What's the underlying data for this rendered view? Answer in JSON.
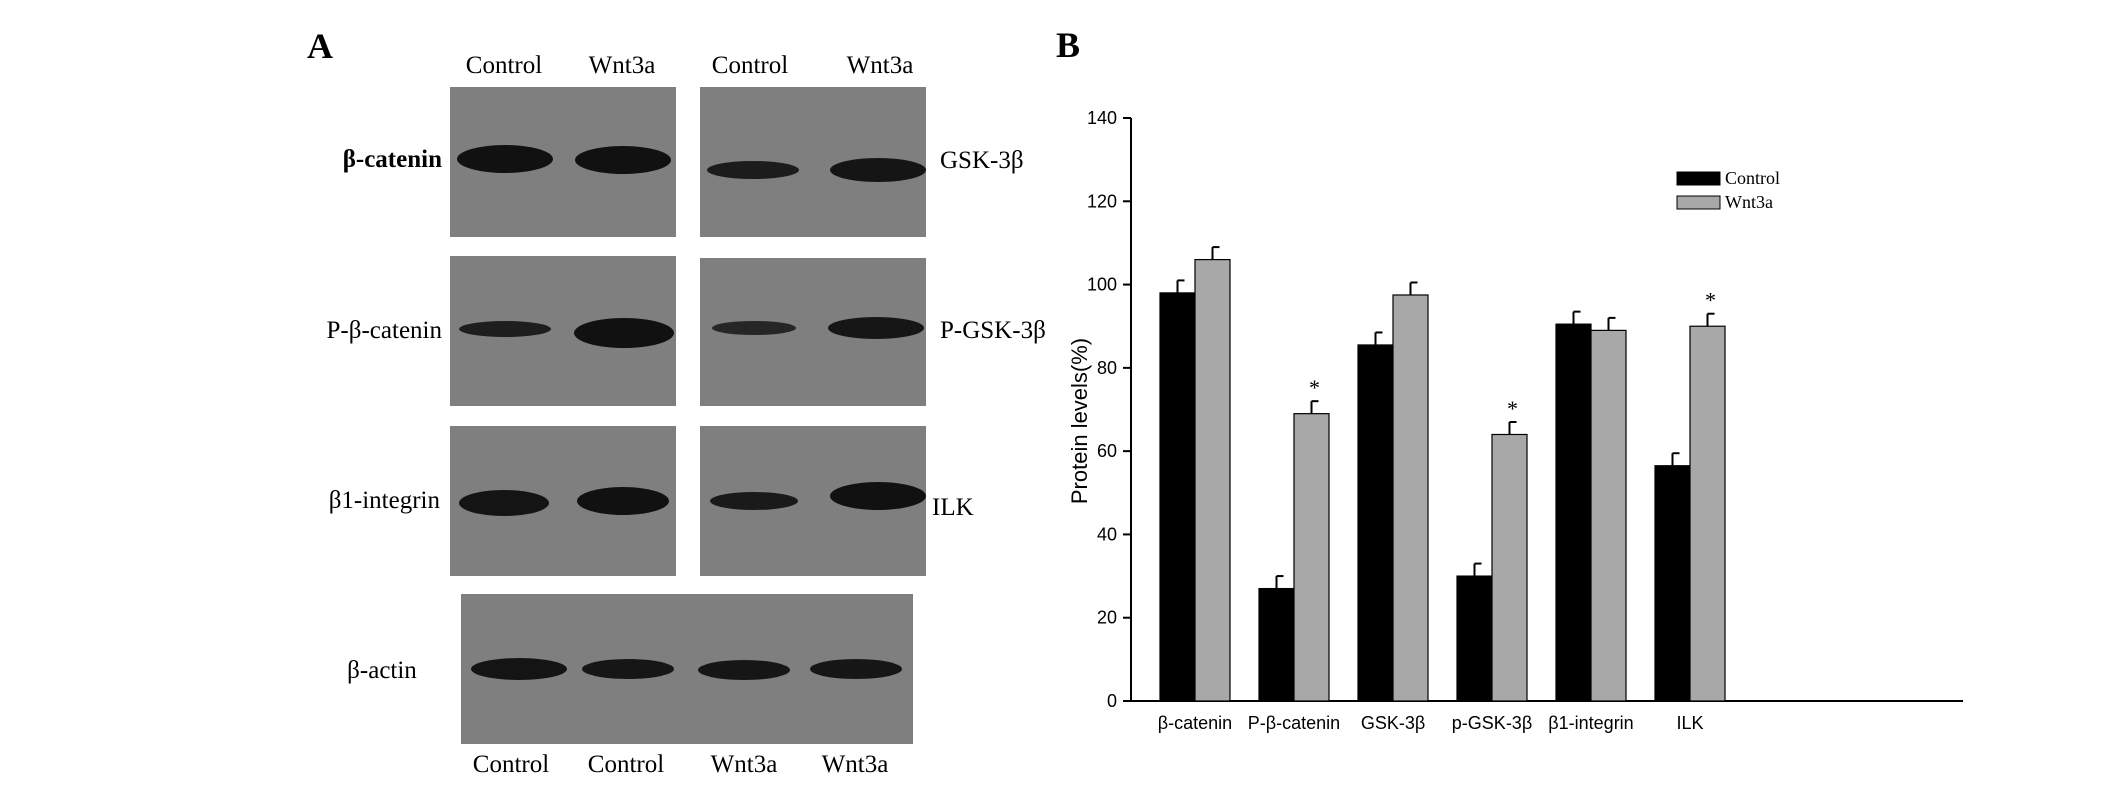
{
  "panel_a": {
    "letter": "A",
    "top_lanes": [
      "Control",
      "Wnt3a",
      "Control",
      "Wnt3a"
    ],
    "blots": [
      {
        "left_label": "β-catenin",
        "right_label": "GSK-3β"
      },
      {
        "left_label": "P-β-catenin",
        "right_label": "P-GSK-3β"
      },
      {
        "left_label": "β1-integrin",
        "right_label": "ILK"
      }
    ],
    "actin_label": "β-actin",
    "bottom_lanes": [
      "Control",
      "Control",
      "Wnt3a",
      "Wnt3a"
    ]
  },
  "panel_b": {
    "letter": "B"
  },
  "chart_data": {
    "type": "bar",
    "categories": [
      "β-catenin",
      "P-β-catenin",
      "GSK-3β",
      "p-GSK-3β",
      "β1-integrin",
      "ILK"
    ],
    "series": [
      {
        "name": "Control",
        "color": "#000000",
        "values": [
          98,
          27,
          85.5,
          30,
          90.5,
          56.5
        ],
        "errors": [
          3,
          3,
          3,
          3,
          3,
          3
        ]
      },
      {
        "name": "Wnt3a",
        "color": "#a8a8a8",
        "values": [
          106,
          69,
          97.5,
          64,
          89,
          90
        ],
        "errors": [
          3,
          3,
          3,
          3,
          3,
          3
        ]
      }
    ],
    "significant": [
      {
        "category": "P-β-catenin",
        "series": "Wnt3a",
        "mark": "*"
      },
      {
        "category": "p-GSK-3β",
        "series": "Wnt3a",
        "mark": "*"
      },
      {
        "category": "ILK",
        "series": "Wnt3a",
        "mark": "*"
      }
    ],
    "title": "",
    "xlabel": "",
    "ylabel": "Protein levels(%)",
    "ylim": [
      0,
      140
    ],
    "yticks": [
      0,
      20,
      40,
      60,
      80,
      100,
      120,
      140
    ],
    "grid": false,
    "legend_position": "top-right"
  }
}
